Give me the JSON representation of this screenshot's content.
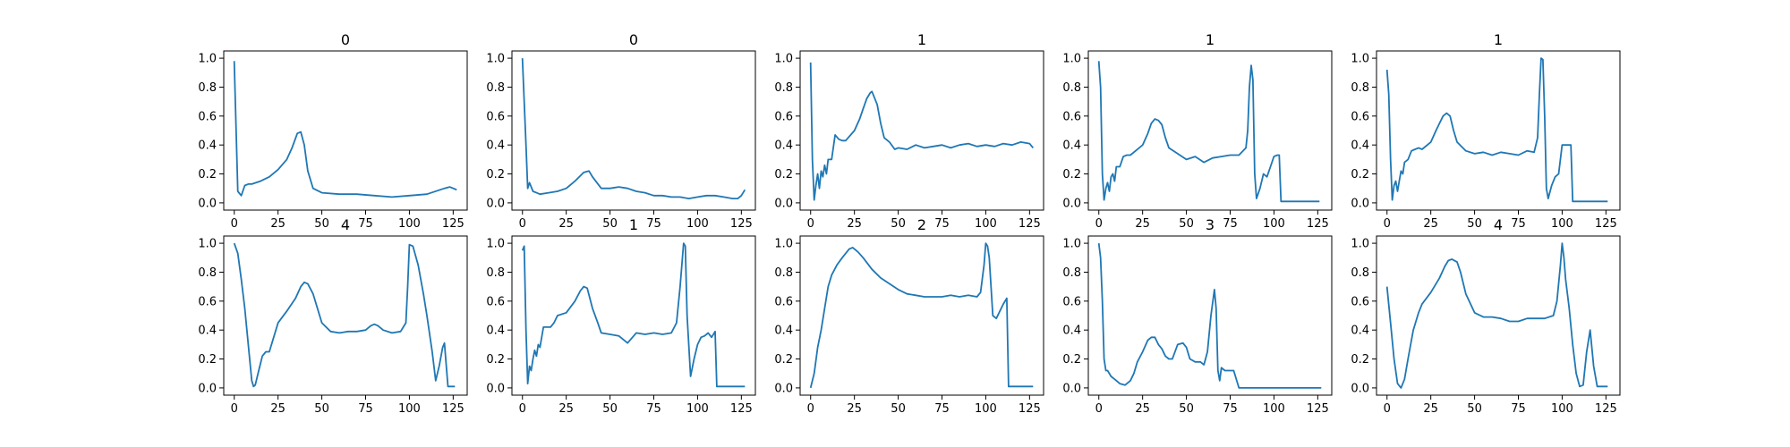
{
  "chart_data": [
    {
      "type": "line",
      "title": "0",
      "x": [
        0,
        2,
        4,
        6,
        8,
        10,
        15,
        20,
        25,
        30,
        33,
        36,
        38,
        40,
        42,
        45,
        50,
        60,
        70,
        80,
        90,
        100,
        110,
        120,
        123,
        127
      ],
      "series": [
        {
          "values": [
            0.98,
            0.08,
            0.05,
            0.12,
            0.13,
            0.13,
            0.15,
            0.18,
            0.23,
            0.3,
            0.38,
            0.48,
            0.49,
            0.4,
            0.22,
            0.1,
            0.07,
            0.06,
            0.06,
            0.05,
            0.04,
            0.05,
            0.06,
            0.1,
            0.11,
            0.09
          ]
        }
      ],
      "xticks": [
        0,
        25,
        50,
        75,
        100,
        125
      ],
      "yticks": [
        0.0,
        0.2,
        0.4,
        0.6,
        0.8,
        1.0
      ],
      "xlim": [
        -6,
        133
      ],
      "ylim": [
        -0.05,
        1.05
      ],
      "color": "#1f77b4"
    },
    {
      "type": "line",
      "title": "0",
      "x": [
        0,
        2,
        3,
        4,
        6,
        8,
        10,
        15,
        20,
        25,
        30,
        35,
        38,
        40,
        45,
        50,
        55,
        60,
        65,
        70,
        75,
        80,
        85,
        90,
        95,
        100,
        105,
        110,
        115,
        120,
        123,
        125,
        127
      ],
      "series": [
        {
          "values": [
            1.0,
            0.4,
            0.1,
            0.14,
            0.08,
            0.07,
            0.06,
            0.07,
            0.08,
            0.1,
            0.15,
            0.21,
            0.22,
            0.18,
            0.1,
            0.1,
            0.11,
            0.1,
            0.08,
            0.07,
            0.05,
            0.05,
            0.04,
            0.04,
            0.03,
            0.04,
            0.05,
            0.05,
            0.04,
            0.03,
            0.03,
            0.05,
            0.09
          ]
        }
      ],
      "xticks": [
        0,
        25,
        50,
        75,
        100,
        125
      ],
      "yticks": [
        0.0,
        0.2,
        0.4,
        0.6,
        0.8,
        1.0
      ],
      "xlim": [
        -6,
        133
      ],
      "ylim": [
        -0.05,
        1.05
      ],
      "color": "#1f77b4"
    },
    {
      "type": "line",
      "title": "1",
      "x": [
        0,
        1,
        2,
        3,
        4,
        5,
        6,
        7,
        8,
        9,
        10,
        12,
        14,
        16,
        18,
        20,
        25,
        28,
        30,
        32,
        34,
        35,
        36,
        38,
        40,
        42,
        45,
        48,
        50,
        55,
        60,
        65,
        70,
        75,
        80,
        85,
        90,
        95,
        100,
        105,
        110,
        115,
        120,
        125,
        127
      ],
      "series": [
        {
          "values": [
            0.97,
            0.3,
            0.02,
            0.12,
            0.2,
            0.1,
            0.22,
            0.18,
            0.26,
            0.2,
            0.3,
            0.3,
            0.47,
            0.44,
            0.43,
            0.43,
            0.5,
            0.58,
            0.65,
            0.72,
            0.76,
            0.77,
            0.74,
            0.68,
            0.55,
            0.45,
            0.42,
            0.37,
            0.38,
            0.37,
            0.4,
            0.38,
            0.39,
            0.4,
            0.38,
            0.4,
            0.41,
            0.39,
            0.4,
            0.39,
            0.41,
            0.4,
            0.42,
            0.41,
            0.38
          ]
        }
      ],
      "xticks": [
        0,
        25,
        50,
        75,
        100,
        125
      ],
      "yticks": [
        0.0,
        0.2,
        0.4,
        0.6,
        0.8,
        1.0
      ],
      "xlim": [
        -6,
        133
      ],
      "ylim": [
        -0.05,
        1.05
      ],
      "color": "#1f77b4"
    },
    {
      "type": "line",
      "title": "1",
      "x": [
        0,
        1,
        2,
        3,
        4,
        5,
        6,
        7,
        8,
        9,
        10,
        12,
        14,
        16,
        18,
        20,
        25,
        28,
        30,
        32,
        34,
        36,
        38,
        40,
        45,
        50,
        55,
        60,
        65,
        70,
        75,
        80,
        84,
        85,
        86,
        87,
        88,
        89,
        90,
        92,
        94,
        96,
        98,
        100,
        102,
        103,
        104,
        126
      ],
      "series": [
        {
          "values": [
            0.98,
            0.8,
            0.2,
            0.02,
            0.1,
            0.14,
            0.08,
            0.18,
            0.2,
            0.15,
            0.25,
            0.25,
            0.32,
            0.33,
            0.33,
            0.35,
            0.4,
            0.48,
            0.55,
            0.58,
            0.57,
            0.54,
            0.45,
            0.38,
            0.34,
            0.3,
            0.32,
            0.28,
            0.31,
            0.32,
            0.33,
            0.33,
            0.38,
            0.5,
            0.8,
            0.95,
            0.85,
            0.2,
            0.03,
            0.1,
            0.2,
            0.18,
            0.25,
            0.32,
            0.33,
            0.33,
            0.01,
            0.01
          ]
        }
      ],
      "xticks": [
        0,
        25,
        50,
        75,
        100,
        125
      ],
      "yticks": [
        0.0,
        0.2,
        0.4,
        0.6,
        0.8,
        1.0
      ],
      "xlim": [
        -6,
        133
      ],
      "ylim": [
        -0.05,
        1.05
      ],
      "color": "#1f77b4"
    },
    {
      "type": "line",
      "title": "1",
      "x": [
        0,
        1,
        2,
        3,
        4,
        5,
        6,
        7,
        8,
        9,
        10,
        12,
        14,
        16,
        18,
        20,
        25,
        28,
        30,
        32,
        34,
        36,
        38,
        40,
        45,
        50,
        55,
        60,
        65,
        70,
        75,
        80,
        84,
        86,
        87,
        88,
        89,
        90,
        91,
        92,
        94,
        96,
        98,
        100,
        102,
        104,
        105,
        106,
        126
      ],
      "series": [
        {
          "values": [
            0.92,
            0.75,
            0.3,
            0.02,
            0.12,
            0.15,
            0.08,
            0.15,
            0.22,
            0.2,
            0.28,
            0.3,
            0.36,
            0.37,
            0.38,
            0.37,
            0.42,
            0.5,
            0.55,
            0.6,
            0.62,
            0.6,
            0.5,
            0.42,
            0.36,
            0.34,
            0.35,
            0.33,
            0.35,
            0.34,
            0.33,
            0.36,
            0.35,
            0.45,
            0.75,
            1.0,
            0.99,
            0.6,
            0.1,
            0.03,
            0.12,
            0.18,
            0.2,
            0.4,
            0.4,
            0.4,
            0.4,
            0.01,
            0.01
          ]
        }
      ],
      "xticks": [
        0,
        25,
        50,
        75,
        100,
        125
      ],
      "yticks": [
        0.0,
        0.2,
        0.4,
        0.6,
        0.8,
        1.0
      ],
      "xlim": [
        -6,
        133
      ],
      "ylim": [
        -0.05,
        1.05
      ],
      "color": "#1f77b4"
    },
    {
      "type": "line",
      "title": "4",
      "x": [
        0,
        2,
        4,
        6,
        8,
        10,
        11,
        12,
        14,
        16,
        18,
        20,
        25,
        30,
        35,
        38,
        40,
        42,
        45,
        50,
        55,
        60,
        65,
        70,
        75,
        78,
        80,
        82,
        85,
        90,
        95,
        98,
        99,
        100,
        102,
        105,
        108,
        110,
        113,
        115,
        117,
        119,
        120,
        122,
        126
      ],
      "series": [
        {
          "values": [
            1.0,
            0.93,
            0.75,
            0.55,
            0.3,
            0.05,
            0.01,
            0.02,
            0.12,
            0.22,
            0.25,
            0.25,
            0.45,
            0.53,
            0.62,
            0.7,
            0.73,
            0.72,
            0.65,
            0.45,
            0.39,
            0.38,
            0.39,
            0.39,
            0.4,
            0.43,
            0.44,
            0.43,
            0.4,
            0.38,
            0.39,
            0.45,
            0.7,
            0.99,
            0.98,
            0.85,
            0.65,
            0.5,
            0.25,
            0.05,
            0.15,
            0.28,
            0.31,
            0.01,
            0.01
          ]
        }
      ],
      "xticks": [
        0,
        25,
        50,
        75,
        100,
        125
      ],
      "yticks": [
        0.0,
        0.2,
        0.4,
        0.6,
        0.8,
        1.0
      ],
      "xlim": [
        -6,
        133
      ],
      "ylim": [
        -0.05,
        1.05
      ],
      "color": "#1f77b4"
    },
    {
      "type": "line",
      "title": "1",
      "x": [
        0,
        1,
        2,
        3,
        4,
        5,
        6,
        7,
        8,
        9,
        10,
        12,
        14,
        16,
        18,
        20,
        25,
        30,
        33,
        35,
        37,
        40,
        43,
        45,
        50,
        55,
        60,
        65,
        70,
        75,
        80,
        85,
        88,
        90,
        92,
        93,
        94,
        96,
        98,
        100,
        102,
        104,
        106,
        108,
        110,
        111,
        127
      ],
      "series": [
        {
          "values": [
            0.95,
            0.98,
            0.4,
            0.03,
            0.15,
            0.12,
            0.2,
            0.26,
            0.22,
            0.3,
            0.28,
            0.42,
            0.42,
            0.42,
            0.45,
            0.5,
            0.52,
            0.6,
            0.67,
            0.7,
            0.69,
            0.55,
            0.45,
            0.38,
            0.37,
            0.36,
            0.31,
            0.38,
            0.37,
            0.38,
            0.37,
            0.38,
            0.45,
            0.7,
            1.0,
            0.98,
            0.5,
            0.08,
            0.2,
            0.3,
            0.35,
            0.36,
            0.38,
            0.35,
            0.39,
            0.01,
            0.01
          ]
        }
      ],
      "xticks": [
        0,
        25,
        50,
        75,
        100,
        125
      ],
      "yticks": [
        0.0,
        0.2,
        0.4,
        0.6,
        0.8,
        1.0
      ],
      "xlim": [
        -6,
        133
      ],
      "ylim": [
        -0.05,
        1.05
      ],
      "color": "#1f77b4"
    },
    {
      "type": "line",
      "title": "2",
      "x": [
        0,
        2,
        4,
        6,
        8,
        10,
        12,
        15,
        18,
        20,
        22,
        24,
        25,
        27,
        30,
        35,
        40,
        45,
        50,
        55,
        60,
        65,
        70,
        75,
        80,
        85,
        90,
        95,
        97,
        99,
        100,
        101,
        102,
        104,
        106,
        110,
        112,
        113,
        127
      ],
      "series": [
        {
          "values": [
            0.0,
            0.1,
            0.28,
            0.4,
            0.55,
            0.7,
            0.78,
            0.85,
            0.9,
            0.93,
            0.96,
            0.97,
            0.96,
            0.94,
            0.9,
            0.82,
            0.76,
            0.72,
            0.68,
            0.65,
            0.64,
            0.63,
            0.63,
            0.63,
            0.64,
            0.63,
            0.64,
            0.63,
            0.66,
            0.85,
            1.0,
            0.98,
            0.9,
            0.5,
            0.48,
            0.58,
            0.62,
            0.01,
            0.01
          ]
        }
      ],
      "xticks": [
        0,
        25,
        50,
        75,
        100,
        125
      ],
      "yticks": [
        0.0,
        0.2,
        0.4,
        0.6,
        0.8,
        1.0
      ],
      "xlim": [
        -6,
        133
      ],
      "ylim": [
        -0.05,
        1.05
      ],
      "color": "#1f77b4"
    },
    {
      "type": "line",
      "title": "3",
      "x": [
        0,
        1,
        2,
        3,
        4,
        5,
        7,
        9,
        12,
        15,
        18,
        20,
        22,
        25,
        28,
        30,
        32,
        34,
        36,
        38,
        40,
        42,
        45,
        48,
        50,
        52,
        55,
        58,
        60,
        62,
        64,
        66,
        67,
        68,
        69,
        70,
        72,
        75,
        77,
        80,
        127
      ],
      "series": [
        {
          "values": [
            1.0,
            0.9,
            0.6,
            0.2,
            0.12,
            0.12,
            0.08,
            0.06,
            0.03,
            0.02,
            0.05,
            0.1,
            0.18,
            0.25,
            0.33,
            0.35,
            0.35,
            0.3,
            0.27,
            0.22,
            0.2,
            0.2,
            0.3,
            0.31,
            0.28,
            0.2,
            0.18,
            0.18,
            0.16,
            0.25,
            0.5,
            0.68,
            0.55,
            0.12,
            0.05,
            0.14,
            0.12,
            0.12,
            0.12,
            0.0,
            0.0
          ]
        }
      ],
      "xticks": [
        0,
        25,
        50,
        75,
        100,
        125
      ],
      "yticks": [
        0.0,
        0.2,
        0.4,
        0.6,
        0.8,
        1.0
      ],
      "xlim": [
        -6,
        133
      ],
      "ylim": [
        -0.05,
        1.05
      ],
      "color": "#1f77b4"
    },
    {
      "type": "line",
      "title": "4",
      "x": [
        0,
        2,
        4,
        6,
        8,
        10,
        12,
        15,
        18,
        20,
        25,
        30,
        33,
        35,
        37,
        40,
        42,
        45,
        50,
        55,
        60,
        65,
        70,
        75,
        80,
        85,
        90,
        95,
        97,
        99,
        100,
        101,
        102,
        104,
        106,
        108,
        110,
        112,
        114,
        116,
        118,
        120,
        126
      ],
      "series": [
        {
          "values": [
            0.7,
            0.45,
            0.2,
            0.03,
            0.0,
            0.06,
            0.2,
            0.4,
            0.52,
            0.58,
            0.66,
            0.76,
            0.84,
            0.88,
            0.89,
            0.87,
            0.8,
            0.65,
            0.52,
            0.49,
            0.49,
            0.48,
            0.46,
            0.46,
            0.48,
            0.48,
            0.48,
            0.5,
            0.6,
            0.85,
            1.0,
            0.9,
            0.75,
            0.55,
            0.3,
            0.1,
            0.01,
            0.02,
            0.25,
            0.4,
            0.15,
            0.01,
            0.01
          ]
        }
      ],
      "xticks": [
        0,
        25,
        50,
        75,
        100,
        125
      ],
      "yticks": [
        0.0,
        0.2,
        0.4,
        0.6,
        0.8,
        1.0
      ],
      "xlim": [
        -6,
        133
      ],
      "ylim": [
        -0.05,
        1.05
      ],
      "color": "#1f77b4"
    }
  ]
}
